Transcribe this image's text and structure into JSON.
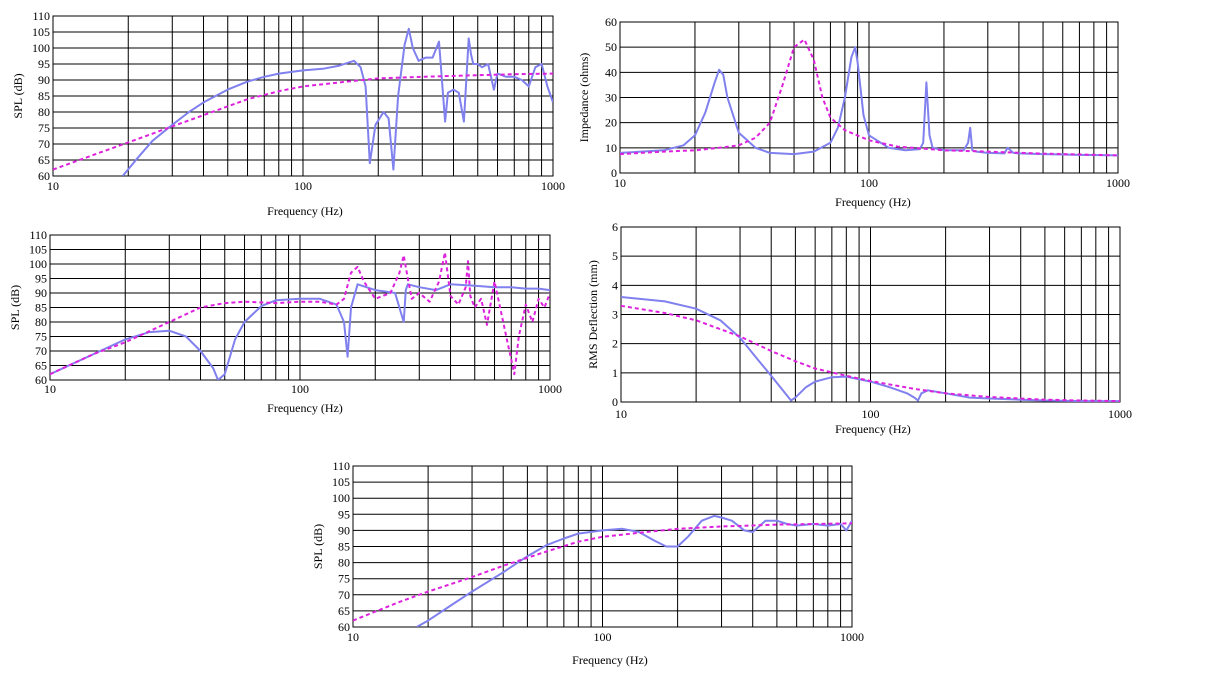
{
  "colors": {
    "solid": "#8080ee",
    "dashed": "#dd22dd",
    "grid": "#000000"
  },
  "chart_data": [
    {
      "type": "line",
      "xscale": "log",
      "xlim": [
        10,
        1000
      ],
      "ylim": [
        60,
        110
      ],
      "xticks": [
        "10",
        "100",
        "1000"
      ],
      "yticks": [
        "60",
        "65",
        "70",
        "75",
        "80",
        "85",
        "90",
        "95",
        "100",
        "105",
        "110"
      ],
      "xlabel": "Frequency (Hz)",
      "ylabel": "SPL (dB)",
      "series": [
        {
          "style": "solid",
          "x": [
            19,
            22,
            25,
            30,
            35,
            40,
            50,
            60,
            70,
            80,
            100,
            120,
            140,
            160,
            170,
            178,
            185,
            195,
            210,
            220,
            230,
            240,
            255,
            265,
            275,
            290,
            310,
            330,
            350,
            370,
            380,
            400,
            420,
            440,
            460,
            470,
            480,
            500,
            520,
            550,
            580,
            600,
            650,
            700,
            750,
            800,
            850,
            900,
            950,
            1000
          ],
          "y": [
            60,
            66,
            71,
            76,
            80,
            83,
            87,
            89.5,
            91,
            92,
            93,
            93.5,
            94.5,
            96,
            94,
            88,
            64,
            76,
            80,
            78,
            62,
            85,
            101,
            106,
            100,
            96,
            97,
            97,
            102,
            77,
            86,
            87,
            86,
            77,
            103,
            98,
            95,
            95,
            94,
            95,
            87,
            92,
            91,
            91,
            90,
            88,
            94,
            95,
            88,
            83
          ]
        },
        {
          "style": "dashed",
          "x": [
            10,
            15,
            20,
            30,
            40,
            60,
            80,
            100,
            150,
            200,
            300,
            500,
            700,
            1000
          ],
          "y": [
            62,
            67,
            70.5,
            75.5,
            79,
            84,
            86.5,
            88,
            89.5,
            90.5,
            91,
            91.5,
            91.8,
            92
          ]
        }
      ]
    },
    {
      "type": "line",
      "xscale": "log",
      "xlim": [
        10,
        1000
      ],
      "ylim": [
        0,
        60
      ],
      "xticks": [
        "10",
        "100",
        "1000"
      ],
      "yticks": [
        "0",
        "10",
        "20",
        "30",
        "40",
        "50",
        "60"
      ],
      "xlabel": "Frequency (Hz)",
      "ylabel": "Impedance (ohms)",
      "series": [
        {
          "style": "solid",
          "x": [
            10,
            15,
            18,
            20,
            22,
            24,
            25,
            26,
            27,
            30,
            35,
            40,
            50,
            60,
            70,
            75,
            80,
            85,
            88,
            90,
            95,
            100,
            120,
            140,
            160,
            165,
            170,
            175,
            180,
            200,
            240,
            250,
            255,
            260,
            270,
            300,
            350,
            360,
            380,
            400,
            500,
            700,
            1000
          ],
          "y": [
            8,
            9,
            11,
            15,
            24,
            36,
            41,
            39,
            30,
            16,
            10,
            8,
            7.5,
            8.5,
            12,
            18,
            30,
            46,
            50,
            44,
            23,
            15,
            10,
            9,
            9.5,
            12,
            36,
            15,
            10,
            9,
            9,
            12,
            18,
            9,
            8.5,
            8,
            7.8,
            10,
            8,
            7.8,
            7.5,
            7.2,
            7
          ]
        },
        {
          "style": "dashed",
          "x": [
            10,
            15,
            20,
            25,
            30,
            35,
            40,
            45,
            50,
            55,
            60,
            65,
            70,
            80,
            100,
            130,
            150,
            200,
            300,
            500,
            1000
          ],
          "y": [
            7.5,
            8.5,
            9,
            10,
            11,
            14,
            20,
            35,
            50,
            53,
            45,
            30,
            22,
            17,
            13,
            10.5,
            10,
            9,
            8.5,
            7.7,
            7
          ]
        }
      ]
    },
    {
      "type": "line",
      "xscale": "log",
      "xlim": [
        10,
        1000
      ],
      "ylim": [
        60,
        110
      ],
      "xticks": [
        "10",
        "100",
        "1000"
      ],
      "yticks": [
        "60",
        "65",
        "70",
        "75",
        "80",
        "85",
        "90",
        "95",
        "100",
        "105",
        "110"
      ],
      "xlabel": "Frequency (Hz)",
      "ylabel": "SPL (dB)",
      "series": [
        {
          "style": "solid",
          "x": [
            10,
            15,
            20,
            25,
            30,
            35,
            40,
            45,
            47,
            50,
            55,
            60,
            70,
            80,
            100,
            120,
            140,
            150,
            155,
            160,
            170,
            200,
            240,
            260,
            265,
            270,
            300,
            350,
            400,
            500,
            600,
            700,
            800,
            900,
            1000
          ],
          "y": [
            62,
            69,
            74,
            76.5,
            77,
            75,
            70,
            64,
            60,
            62,
            74,
            80,
            85.5,
            87.5,
            88,
            88,
            86,
            80,
            68,
            85,
            93,
            91,
            90,
            80,
            91,
            93,
            92,
            91,
            93,
            92.5,
            92,
            92,
            91.5,
            91.5,
            91
          ]
        },
        {
          "style": "dashed",
          "x": [
            10,
            15,
            20,
            30,
            40,
            50,
            60,
            80,
            100,
            120,
            140,
            150,
            160,
            170,
            180,
            200,
            230,
            250,
            260,
            270,
            280,
            300,
            330,
            360,
            380,
            400,
            430,
            460,
            470,
            480,
            500,
            530,
            560,
            600,
            650,
            680,
            700,
            720,
            750,
            800,
            850,
            900,
            950,
            1000
          ],
          "y": [
            62,
            69,
            73,
            80,
            85,
            86.5,
            87,
            86.5,
            87,
            87,
            86,
            88,
            97,
            99,
            94,
            88,
            90,
            97,
            103,
            95,
            88,
            90,
            87,
            94,
            104,
            89,
            86,
            92,
            101,
            89,
            85,
            88,
            79,
            94,
            80,
            72,
            67,
            62,
            75,
            86,
            80,
            88,
            85,
            90
          ]
        }
      ]
    },
    {
      "type": "line",
      "xscale": "log",
      "xlim": [
        10,
        1000
      ],
      "ylim": [
        0,
        6
      ],
      "xticks": [
        "10",
        "100",
        "1000"
      ],
      "yticks": [
        "0",
        "1",
        "2",
        "3",
        "4",
        "5",
        "6"
      ],
      "xlabel": "Frequency (Hz)",
      "ylabel": "RMS Deflection (mm)",
      "series": [
        {
          "style": "solid",
          "x": [
            10,
            15,
            20,
            25,
            30,
            35,
            40,
            45,
            48,
            50,
            55,
            60,
            70,
            80,
            100,
            120,
            140,
            150,
            155,
            160,
            170,
            200,
            250,
            300,
            400,
            500,
            700,
            1000
          ],
          "y": [
            3.6,
            3.45,
            3.2,
            2.8,
            2.2,
            1.5,
            0.9,
            0.35,
            0.05,
            0.15,
            0.5,
            0.7,
            0.85,
            0.87,
            0.7,
            0.5,
            0.3,
            0.15,
            0.05,
            0.3,
            0.4,
            0.3,
            0.15,
            0.12,
            0.08,
            0.05,
            0.03,
            0.03
          ]
        },
        {
          "style": "dashed",
          "x": [
            10,
            15,
            20,
            30,
            40,
            50,
            60,
            80,
            100,
            150,
            200,
            300,
            500,
            700,
            1000
          ],
          "y": [
            3.3,
            3.05,
            2.8,
            2.25,
            1.75,
            1.4,
            1.15,
            0.9,
            0.72,
            0.45,
            0.3,
            0.17,
            0.08,
            0.05,
            0.03
          ]
        }
      ]
    },
    {
      "type": "line",
      "xscale": "log",
      "xlim": [
        10,
        1000
      ],
      "ylim": [
        60,
        110
      ],
      "xticks": [
        "10",
        "100",
        "1000"
      ],
      "yticks": [
        "60",
        "65",
        "70",
        "75",
        "80",
        "85",
        "90",
        "95",
        "100",
        "105",
        "110"
      ],
      "xlabel": "Frequency (Hz)",
      "ylabel": "SPL (dB)",
      "series": [
        {
          "style": "solid",
          "x": [
            18,
            20,
            25,
            30,
            40,
            50,
            60,
            70,
            80,
            100,
            120,
            140,
            160,
            180,
            200,
            220,
            250,
            280,
            300,
            330,
            370,
            400,
            450,
            500,
            550,
            600,
            700,
            800,
            900,
            950,
            1000
          ],
          "y": [
            60,
            62,
            67,
            71,
            77,
            82,
            85.5,
            87.5,
            89,
            90,
            90.5,
            89.5,
            87,
            85,
            85,
            88,
            93,
            94.5,
            94,
            93,
            90,
            89.5,
            93,
            93,
            92,
            91.5,
            92,
            91.5,
            92,
            90,
            93
          ]
        },
        {
          "style": "dashed",
          "x": [
            10,
            15,
            20,
            30,
            40,
            60,
            80,
            100,
            150,
            200,
            300,
            500,
            700,
            1000
          ],
          "y": [
            62,
            67.5,
            71,
            75.5,
            79,
            83.5,
            86.5,
            88,
            89.5,
            90.5,
            91.2,
            91.8,
            92,
            92.2
          ]
        }
      ]
    }
  ]
}
